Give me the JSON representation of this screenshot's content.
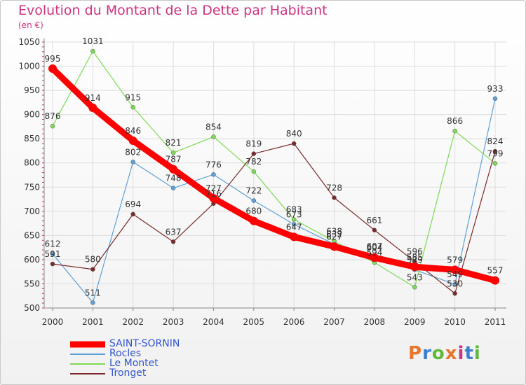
{
  "header": {
    "title": "Evolution du Montant de la Dette par Habitant",
    "unit": "(en €)"
  },
  "logo": {
    "text": "Proxiti",
    "colors": [
      "#e8762d",
      "#3a7fd0",
      "#5fb93c",
      "#e8762d",
      "#cc3380",
      "#3a7fd0",
      "#5fb93c"
    ]
  },
  "chart_data": {
    "type": "line",
    "title": "Evolution du Montant de la Dette par Habitant",
    "subtitle": "(en €)",
    "x": [
      "2000",
      "2001",
      "2002",
      "2003",
      "2004",
      "2005",
      "2006",
      "2007",
      "2008",
      "2009",
      "2010",
      "2011"
    ],
    "ylim": [
      500,
      1050
    ],
    "yticks": [
      500,
      550,
      600,
      650,
      700,
      750,
      800,
      850,
      900,
      950,
      1000,
      1050
    ],
    "grid": true,
    "legend_position": "bottom-left",
    "series": [
      {
        "name": "SAINT-SORNIN",
        "color": "#ff0000",
        "width": 9,
        "dot": 6,
        "values": [
          995,
          914,
          846,
          787,
          727,
          680,
          647,
          627,
          604,
          585,
          579,
          557
        ],
        "labels": [
          "995",
          "914",
          "846",
          "787",
          "727",
          "680",
          "647",
          "627",
          "604",
          "585",
          "579",
          "557"
        ]
      },
      {
        "name": "Rocles",
        "color": "#5fa0d7",
        "width": 1.2,
        "dot": 3,
        "values": [
          612,
          511,
          802,
          748,
          776,
          722,
          673,
          632,
          607,
          579,
          549,
          933
        ],
        "labels": [
          "612",
          "511",
          "802",
          "748",
          "776",
          "722",
          "673",
          "632",
          "607",
          "579",
          "549",
          "933"
        ]
      },
      {
        "name": "Le Montet",
        "color": "#7ed957",
        "width": 1.2,
        "dot": 3,
        "values": [
          876,
          1031,
          915,
          821,
          854,
          782,
          683,
          638,
          594,
          543,
          866,
          799
        ],
        "labels": [
          "876",
          "1031",
          "915",
          "821",
          "854",
          "782",
          "683",
          "638",
          "594",
          "543",
          "866",
          "799"
        ]
      },
      {
        "name": "Tronget",
        "color": "#7a2a2a",
        "width": 1.2,
        "dot": 3,
        "values": [
          591,
          580,
          694,
          637,
          716,
          819,
          840,
          728,
          661,
          596,
          530,
          824
        ],
        "labels": [
          "591",
          "580",
          "694",
          "637",
          "716",
          "819",
          "840",
          "728",
          "661",
          "596",
          "530",
          "824"
        ]
      }
    ]
  }
}
